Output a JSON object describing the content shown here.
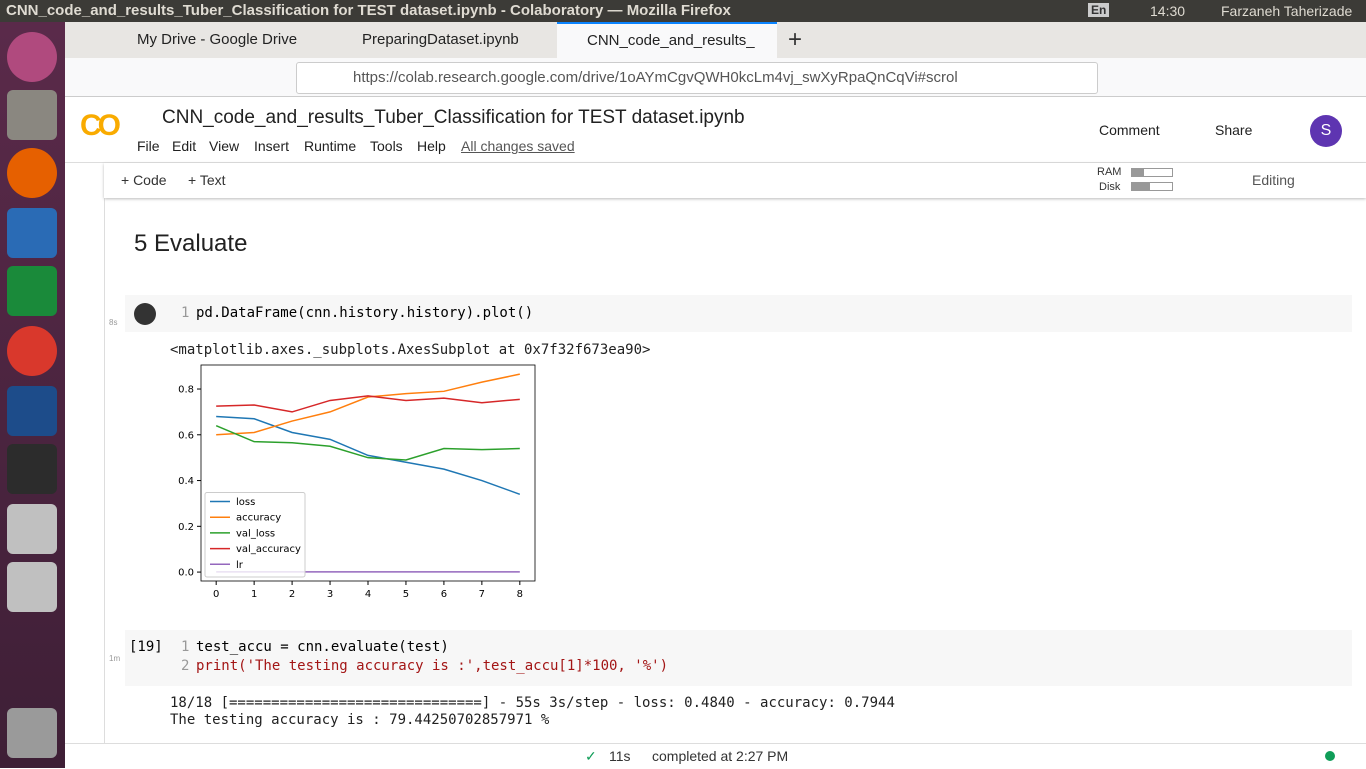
{
  "os": {
    "window_title": "CNN_code_and_results_Tuber_Classification for TEST dataset.ipynb - Colaboratory — Mozilla Firefox",
    "language": "En",
    "time": "14:30",
    "user": "Farzaneh Taherizade"
  },
  "browser": {
    "tabs": [
      "My Drive - Google Drive",
      "PreparingDataset.ipynb",
      "CNN_code_and_results_"
    ],
    "url": "https://colab.research.google.com/drive/1oAYmCgvQWH0kcLm4vj_swXyRpaQnCqVi#scrol"
  },
  "colab": {
    "notebook_title": "CNN_code_and_results_Tuber_Classification for TEST dataset.ipynb",
    "menu": [
      "File",
      "Edit",
      "View",
      "Insert",
      "Runtime",
      "Tools",
      "Help"
    ],
    "save_status": "All changes saved",
    "comment": "Comment",
    "share": "Share",
    "avatar": "S",
    "add_code": "+ Code",
    "add_text": "+ Text",
    "ram": "RAM",
    "disk": "Disk",
    "mode": "Editing",
    "section": "5 Evaluate",
    "cells": [
      {
        "duration": "8s",
        "lines": [
          {
            "number": "1",
            "code": "pd.DataFrame(cnn.history.history).plot()"
          }
        ],
        "output": [
          "<matplotlib.axes._subplots.AxesSubplot at 0x7f32f673ea90>"
        ]
      },
      {
        "exec_count": "[19]",
        "duration": "1m",
        "lines": [
          {
            "number": "1",
            "code": "test_accu = cnn.evaluate(test)"
          },
          {
            "number": "2",
            "code": "print('The testing accuracy is :',test_accu[1]*100, '%')"
          }
        ],
        "output": [
          "18/18 [==============================] - 55s 3s/step - loss: 0.4840 - accuracy: 0.7944",
          "The testing accuracy is : 79.44250702857971 %"
        ]
      }
    ],
    "status": {
      "elapsed": "11s",
      "completed": "completed at 2:27 PM"
    }
  },
  "chart_data": {
    "type": "line",
    "x": [
      0,
      1,
      2,
      3,
      4,
      5,
      6,
      7,
      8
    ],
    "series": [
      {
        "name": "loss",
        "color": "#1f77b4",
        "values": [
          0.68,
          0.67,
          0.61,
          0.58,
          0.51,
          0.48,
          0.45,
          0.4,
          0.34
        ]
      },
      {
        "name": "accuracy",
        "color": "#ff7f0e",
        "values": [
          0.6,
          0.61,
          0.66,
          0.7,
          0.765,
          0.78,
          0.79,
          0.83,
          0.865
        ]
      },
      {
        "name": "val_loss",
        "color": "#2ca02c",
        "values": [
          0.64,
          0.57,
          0.565,
          0.55,
          0.5,
          0.49,
          0.54,
          0.535,
          0.54
        ]
      },
      {
        "name": "val_accuracy",
        "color": "#d62728",
        "values": [
          0.725,
          0.73,
          0.7,
          0.75,
          0.77,
          0.75,
          0.76,
          0.74,
          0.755
        ]
      },
      {
        "name": "lr",
        "color": "#9467bd",
        "values": [
          0.001,
          0.001,
          0.001,
          0.001,
          0.001,
          0.001,
          0.001,
          0.001,
          0.001
        ]
      }
    ],
    "xlim": [
      -0.4,
      8.4
    ],
    "ylim": [
      -0.039,
      0.905
    ],
    "xticks": [
      0,
      1,
      2,
      3,
      4,
      5,
      6,
      7,
      8
    ],
    "yticks": [
      {
        "value": 0,
        "label": "0.0"
      },
      0.2,
      0.4,
      0.6,
      0.8
    ],
    "legend": "lower left"
  }
}
